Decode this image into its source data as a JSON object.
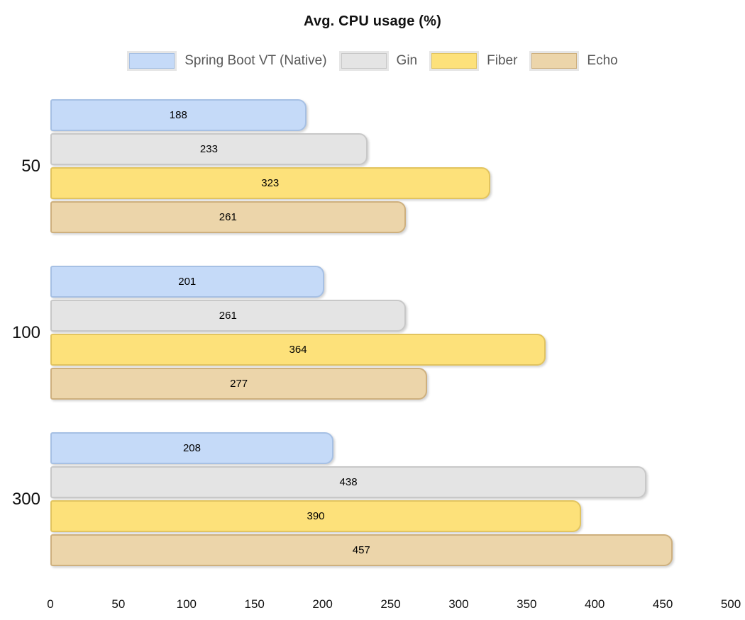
{
  "title": "Avg. CPU usage (%)",
  "chart_data": {
    "type": "bar",
    "orientation": "horizontal",
    "title": "Avg. CPU usage (%)",
    "categories": [
      "50",
      "100",
      "300"
    ],
    "series": [
      {
        "name": "Spring Boot VT (Native)",
        "values": [
          188,
          201,
          208
        ],
        "fill": "#c5daf8",
        "stroke": "#a6c0e4"
      },
      {
        "name": "Gin",
        "values": [
          233,
          261,
          438
        ],
        "fill": "#e4e4e4",
        "stroke": "#c8c8c8"
      },
      {
        "name": "Fiber",
        "values": [
          323,
          364,
          390
        ],
        "fill": "#fde17a",
        "stroke": "#e2c45f"
      },
      {
        "name": "Echo",
        "values": [
          261,
          277,
          457
        ],
        "fill": "#ecd5aa",
        "stroke": "#ceb07e"
      }
    ],
    "xlim": [
      0,
      500
    ],
    "x_ticks": [
      "0",
      "50",
      "100",
      "150",
      "200",
      "250",
      "300",
      "350",
      "400",
      "450",
      "500"
    ],
    "value_labels": true,
    "legend_position": "top",
    "grid": false,
    "axis_lines": false,
    "legend_frame_color": "#e6e6e6",
    "legend_text_color": "#595959",
    "value_label_color": "#000000"
  }
}
